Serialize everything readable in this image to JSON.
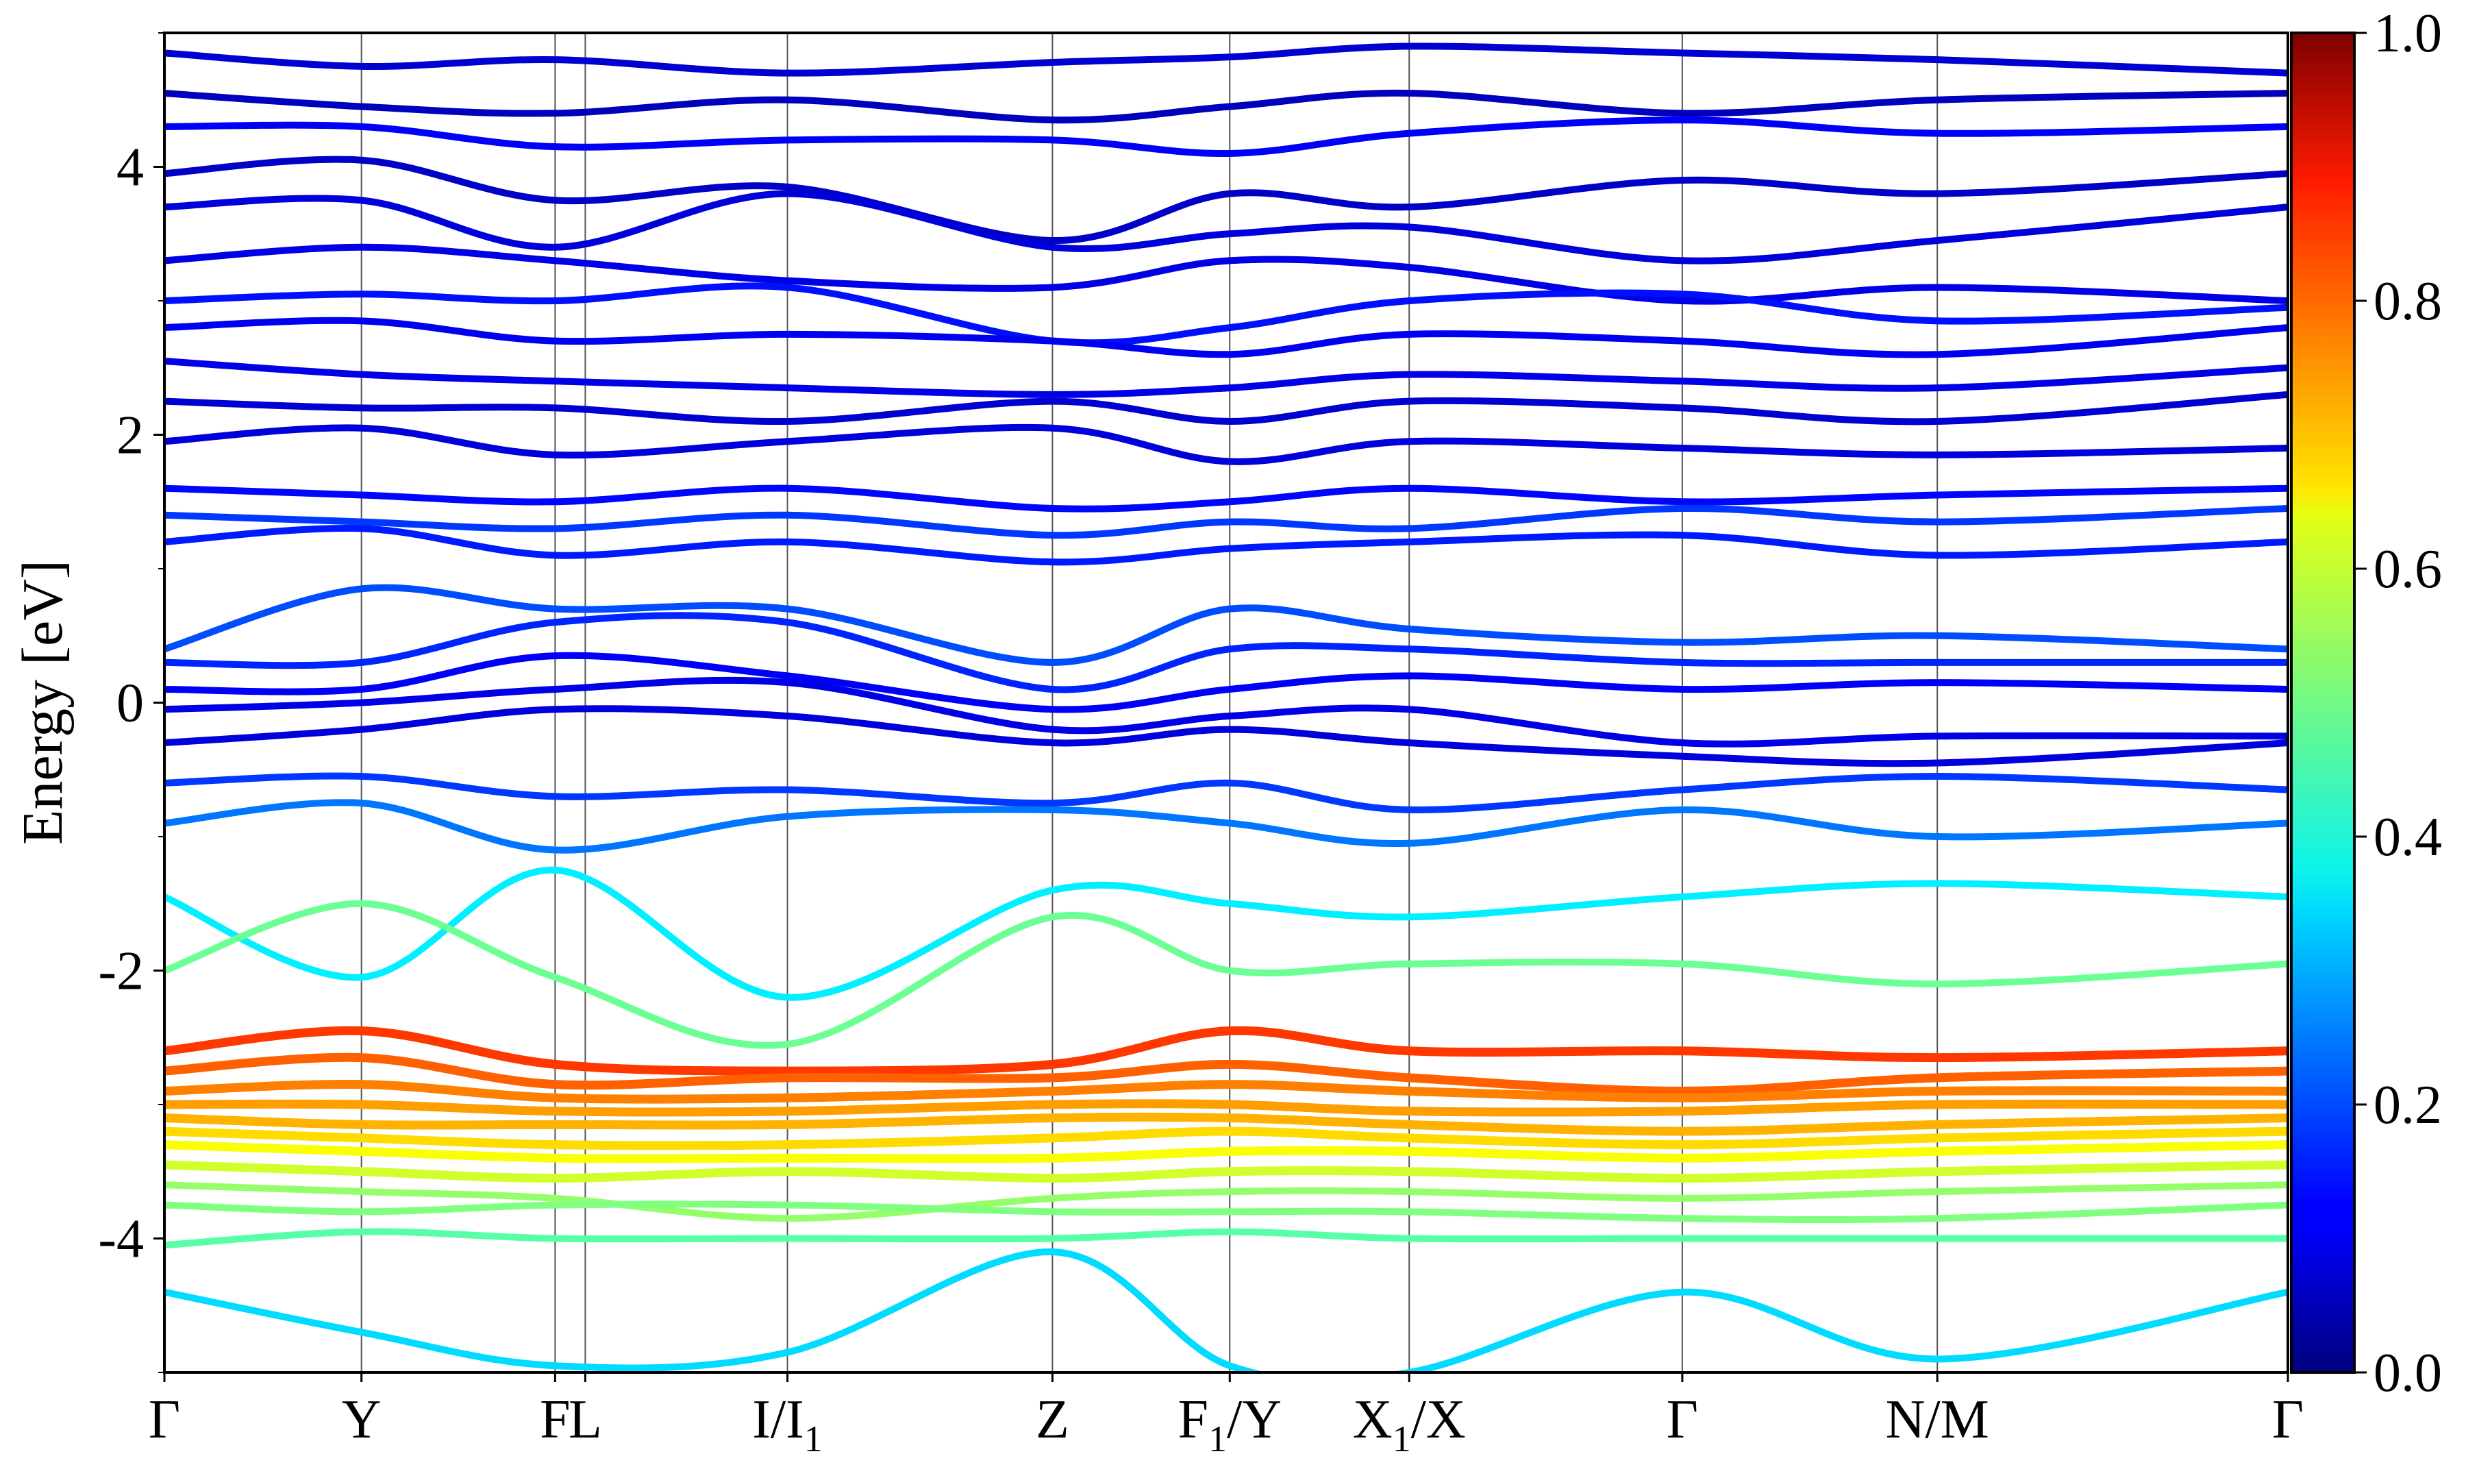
{
  "chart_data": {
    "type": "line",
    "title": "",
    "xlabel": "",
    "ylabel": "Energy [eV]",
    "ylim": [
      -5,
      5
    ],
    "y_ticks": [
      -4,
      -2,
      0,
      2,
      4
    ],
    "y_tick_labels": [
      "-4",
      "-2",
      "0",
      "2",
      "4"
    ],
    "grid": "vertical lines at high-symmetry points",
    "high_symmetry_points": [
      {
        "label": "Γ",
        "sub": "",
        "suffix": "",
        "k": 0.0
      },
      {
        "label": "Y",
        "sub": "",
        "suffix": "",
        "k": 0.0928
      },
      {
        "label": "F",
        "sub": "",
        "suffix": "",
        "k": 0.184
      },
      {
        "label": "L",
        "sub": "",
        "suffix": "",
        "k": 0.1982
      },
      {
        "label": "I/I",
        "sub": "1",
        "suffix": "",
        "k": 0.2934
      },
      {
        "label": "Z",
        "sub": "",
        "suffix": "",
        "k": 0.4182
      },
      {
        "label": "F",
        "sub": "1",
        "suffix": "/Y",
        "k": 0.5017
      },
      {
        "label": "X",
        "sub": "1",
        "suffix": "/X",
        "k": 0.5862
      },
      {
        "label": "Γ",
        "sub": "",
        "suffix": "",
        "k": 0.7148
      },
      {
        "label": "N/M",
        "sub": "",
        "suffix": "",
        "k": 0.8349
      },
      {
        "label": "Γ",
        "sub": "",
        "suffix": "",
        "k": 1.0
      }
    ],
    "colorbar": {
      "colormap": "jet",
      "range": [
        0.0,
        1.0
      ],
      "ticks": [
        "0.0",
        "0.2",
        "0.4",
        "0.6",
        "0.8",
        "1.0"
      ]
    },
    "series": [
      {
        "k": [
          0,
          0.0928,
          0.184,
          0.2934,
          0.4182,
          0.5017,
          0.5862,
          0.7148,
          0.8349,
          1.0
        ],
        "energy": [
          4.85,
          4.75,
          4.8,
          4.7,
          4.78,
          4.82,
          4.9,
          4.85,
          4.8,
          4.7
        ],
        "weight": 0.08
      },
      {
        "k": [
          0,
          0.0928,
          0.184,
          0.2934,
          0.4182,
          0.5017,
          0.5862,
          0.7148,
          0.8349,
          1.0
        ],
        "energy": [
          4.55,
          4.45,
          4.4,
          4.5,
          4.35,
          4.45,
          4.55,
          4.4,
          4.5,
          4.55
        ],
        "weight": 0.06
      },
      {
        "k": [
          0,
          0.0928,
          0.184,
          0.2934,
          0.4182,
          0.5017,
          0.5862,
          0.7148,
          0.8349,
          1.0
        ],
        "energy": [
          4.3,
          4.3,
          4.15,
          4.2,
          4.2,
          4.1,
          4.25,
          4.35,
          4.25,
          4.3
        ],
        "weight": 0.12
      },
      {
        "k": [
          0,
          0.0928,
          0.184,
          0.2934,
          0.4182,
          0.5017,
          0.5862,
          0.7148,
          0.8349,
          1.0
        ],
        "energy": [
          3.95,
          4.05,
          3.75,
          3.85,
          3.45,
          3.8,
          3.7,
          3.9,
          3.8,
          3.95
        ],
        "weight": 0.07
      },
      {
        "k": [
          0,
          0.0928,
          0.184,
          0.2934,
          0.4182,
          0.5017,
          0.5862,
          0.7148,
          0.8349,
          1.0
        ],
        "energy": [
          3.7,
          3.75,
          3.4,
          3.8,
          3.4,
          3.5,
          3.55,
          3.3,
          3.45,
          3.7
        ],
        "weight": 0.09
      },
      {
        "k": [
          0,
          0.0928,
          0.184,
          0.2934,
          0.4182,
          0.5017,
          0.5862,
          0.7148,
          0.8349,
          1.0
        ],
        "energy": [
          3.3,
          3.4,
          3.3,
          3.15,
          3.1,
          3.3,
          3.25,
          3.0,
          3.1,
          3.0
        ],
        "weight": 0.1
      },
      {
        "k": [
          0,
          0.0928,
          0.184,
          0.2934,
          0.4182,
          0.5017,
          0.5862,
          0.7148,
          0.8349,
          1.0
        ],
        "energy": [
          3.0,
          3.05,
          3.0,
          3.1,
          2.7,
          2.8,
          3.0,
          3.05,
          2.85,
          2.95
        ],
        "weight": 0.14
      },
      {
        "k": [
          0,
          0.0928,
          0.184,
          0.2934,
          0.4182,
          0.5017,
          0.5862,
          0.7148,
          0.8349,
          1.0
        ],
        "energy": [
          2.8,
          2.85,
          2.7,
          2.75,
          2.7,
          2.6,
          2.75,
          2.7,
          2.6,
          2.8
        ],
        "weight": 0.11
      },
      {
        "k": [
          0,
          0.0928,
          0.184,
          0.2934,
          0.4182,
          0.5017,
          0.5862,
          0.7148,
          0.8349,
          1.0
        ],
        "energy": [
          2.55,
          2.45,
          2.4,
          2.35,
          2.3,
          2.35,
          2.45,
          2.4,
          2.35,
          2.5
        ],
        "weight": 0.1
      },
      {
        "k": [
          0,
          0.0928,
          0.184,
          0.2934,
          0.4182,
          0.5017,
          0.5862,
          0.7148,
          0.8349,
          1.0
        ],
        "energy": [
          2.25,
          2.2,
          2.2,
          2.1,
          2.25,
          2.1,
          2.25,
          2.2,
          2.1,
          2.3
        ],
        "weight": 0.08
      },
      {
        "k": [
          0,
          0.0928,
          0.184,
          0.2934,
          0.4182,
          0.5017,
          0.5862,
          0.7148,
          0.8349,
          1.0
        ],
        "energy": [
          1.95,
          2.05,
          1.85,
          1.95,
          2.05,
          1.8,
          1.95,
          1.9,
          1.85,
          1.9
        ],
        "weight": 0.09
      },
      {
        "k": [
          0,
          0.0928,
          0.184,
          0.2934,
          0.4182,
          0.5017,
          0.5862,
          0.7148,
          0.8349,
          1.0
        ],
        "energy": [
          1.6,
          1.55,
          1.5,
          1.6,
          1.45,
          1.5,
          1.6,
          1.5,
          1.55,
          1.6
        ],
        "weight": 0.13
      },
      {
        "k": [
          0,
          0.0928,
          0.184,
          0.2934,
          0.4182,
          0.5017,
          0.5862,
          0.7148,
          0.8349,
          1.0
        ],
        "energy": [
          1.4,
          1.35,
          1.3,
          1.4,
          1.25,
          1.35,
          1.3,
          1.45,
          1.35,
          1.45
        ],
        "weight": 0.18
      },
      {
        "k": [
          0,
          0.0928,
          0.184,
          0.2934,
          0.4182,
          0.5017,
          0.5862,
          0.7148,
          0.8349,
          1.0
        ],
        "energy": [
          1.2,
          1.3,
          1.1,
          1.2,
          1.05,
          1.15,
          1.2,
          1.25,
          1.1,
          1.2
        ],
        "weight": 0.15
      },
      {
        "k": [
          0,
          0.0928,
          0.184,
          0.2934,
          0.4182,
          0.5017,
          0.5862,
          0.7148,
          0.8349,
          1.0
        ],
        "energy": [
          0.4,
          0.85,
          0.7,
          0.7,
          0.3,
          0.7,
          0.55,
          0.45,
          0.5,
          0.4
        ],
        "weight": 0.2
      },
      {
        "k": [
          0,
          0.0928,
          0.184,
          0.2934,
          0.4182,
          0.5017,
          0.5862,
          0.7148,
          0.8349,
          1.0
        ],
        "energy": [
          0.3,
          0.3,
          0.6,
          0.6,
          0.1,
          0.4,
          0.4,
          0.3,
          0.3,
          0.3
        ],
        "weight": 0.16
      },
      {
        "k": [
          0,
          0.0928,
          0.184,
          0.2934,
          0.4182,
          0.5017,
          0.5862,
          0.7148,
          0.8349,
          1.0
        ],
        "energy": [
          0.1,
          0.1,
          0.35,
          0.2,
          -0.05,
          0.1,
          0.2,
          0.1,
          0.15,
          0.1
        ],
        "weight": 0.12
      },
      {
        "k": [
          0,
          0.0928,
          0.184,
          0.2934,
          0.4182,
          0.5017,
          0.5862,
          0.7148,
          0.8349,
          1.0
        ],
        "energy": [
          -0.05,
          0.0,
          0.1,
          0.15,
          -0.2,
          -0.1,
          -0.05,
          -0.3,
          -0.25,
          -0.25
        ],
        "weight": 0.1
      },
      {
        "k": [
          0,
          0.0928,
          0.184,
          0.2934,
          0.4182,
          0.5017,
          0.5862,
          0.7148,
          0.8349,
          1.0
        ],
        "energy": [
          -0.3,
          -0.2,
          -0.05,
          -0.1,
          -0.3,
          -0.2,
          -0.3,
          -0.4,
          -0.45,
          -0.3
        ],
        "weight": 0.09
      },
      {
        "k": [
          0,
          0.0928,
          0.184,
          0.2934,
          0.4182,
          0.5017,
          0.5862,
          0.7148,
          0.8349,
          1.0
        ],
        "energy": [
          -0.6,
          -0.55,
          -0.7,
          -0.65,
          -0.75,
          -0.6,
          -0.8,
          -0.65,
          -0.55,
          -0.65
        ],
        "weight": 0.18
      },
      {
        "k": [
          0,
          0.0928,
          0.184,
          0.2934,
          0.4182,
          0.5017,
          0.5862,
          0.7148,
          0.8349,
          1.0
        ],
        "energy": [
          -0.9,
          -0.75,
          -1.1,
          -0.85,
          -0.8,
          -0.9,
          -1.05,
          -0.8,
          -1.0,
          -0.9
        ],
        "weight": 0.24
      },
      {
        "k": [
          0,
          0.0928,
          0.184,
          0.2934,
          0.4182,
          0.5017,
          0.5862,
          0.7148,
          0.8349,
          1.0
        ],
        "energy": [
          -1.45,
          -2.05,
          -1.25,
          -2.2,
          -1.4,
          -1.5,
          -1.6,
          -1.45,
          -1.35,
          -1.45
        ],
        "weight": 0.36
      },
      {
        "k": [
          0,
          0.0928,
          0.184,
          0.2934,
          0.4182,
          0.5017,
          0.5862,
          0.7148,
          0.8349,
          1.0
        ],
        "energy": [
          -2.0,
          -1.5,
          -2.05,
          -2.55,
          -1.6,
          -2.0,
          -1.95,
          -1.95,
          -2.1,
          -1.95
        ],
        "weight": 0.48
      },
      {
        "k": [
          0,
          0.0928,
          0.184,
          0.2934,
          0.4182,
          0.5017,
          0.5862,
          0.7148,
          0.8349,
          1.0
        ],
        "energy": [
          -2.6,
          -2.45,
          -2.7,
          -2.75,
          -2.7,
          -2.45,
          -2.6,
          -2.6,
          -2.65,
          -2.6
        ],
        "weight": 0.82
      },
      {
        "k": [
          0,
          0.0928,
          0.184,
          0.2934,
          0.4182,
          0.5017,
          0.5862,
          0.7148,
          0.8349,
          1.0
        ],
        "energy": [
          -2.75,
          -2.65,
          -2.85,
          -2.8,
          -2.8,
          -2.7,
          -2.8,
          -2.9,
          -2.8,
          -2.75
        ],
        "weight": 0.78
      },
      {
        "k": [
          0,
          0.0928,
          0.184,
          0.2934,
          0.4182,
          0.5017,
          0.5862,
          0.7148,
          0.8349,
          1.0
        ],
        "energy": [
          -2.9,
          -2.85,
          -2.95,
          -2.95,
          -2.9,
          -2.85,
          -2.9,
          -2.95,
          -2.9,
          -2.9
        ],
        "weight": 0.75
      },
      {
        "k": [
          0,
          0.0928,
          0.184,
          0.2934,
          0.4182,
          0.5017,
          0.5862,
          0.7148,
          0.8349,
          1.0
        ],
        "energy": [
          -3.0,
          -3.0,
          -3.05,
          -3.05,
          -3.0,
          -3.0,
          -3.05,
          -3.05,
          -3.0,
          -3.0
        ],
        "weight": 0.72
      },
      {
        "k": [
          0,
          0.0928,
          0.184,
          0.2934,
          0.4182,
          0.5017,
          0.5862,
          0.7148,
          0.8349,
          1.0
        ],
        "energy": [
          -3.1,
          -3.15,
          -3.15,
          -3.15,
          -3.1,
          -3.1,
          -3.15,
          -3.2,
          -3.15,
          -3.1
        ],
        "weight": 0.7
      },
      {
        "k": [
          0,
          0.0928,
          0.184,
          0.2934,
          0.4182,
          0.5017,
          0.5862,
          0.7148,
          0.8349,
          1.0
        ],
        "energy": [
          -3.2,
          -3.25,
          -3.3,
          -3.3,
          -3.25,
          -3.2,
          -3.25,
          -3.3,
          -3.25,
          -3.2
        ],
        "weight": 0.66
      },
      {
        "k": [
          0,
          0.0928,
          0.184,
          0.2934,
          0.4182,
          0.5017,
          0.5862,
          0.7148,
          0.8349,
          1.0
        ],
        "energy": [
          -3.3,
          -3.35,
          -3.4,
          -3.4,
          -3.4,
          -3.35,
          -3.35,
          -3.4,
          -3.35,
          -3.3
        ],
        "weight": 0.62
      },
      {
        "k": [
          0,
          0.0928,
          0.184,
          0.2934,
          0.4182,
          0.5017,
          0.5862,
          0.7148,
          0.8349,
          1.0
        ],
        "energy": [
          -3.45,
          -3.5,
          -3.55,
          -3.5,
          -3.55,
          -3.5,
          -3.5,
          -3.55,
          -3.5,
          -3.45
        ],
        "weight": 0.58
      },
      {
        "k": [
          0,
          0.0928,
          0.184,
          0.2934,
          0.4182,
          0.5017,
          0.5862,
          0.7148,
          0.8349,
          1.0
        ],
        "energy": [
          -3.6,
          -3.65,
          -3.7,
          -3.85,
          -3.7,
          -3.65,
          -3.65,
          -3.7,
          -3.65,
          -3.6
        ],
        "weight": 0.52
      },
      {
        "k": [
          0,
          0.0928,
          0.184,
          0.2934,
          0.4182,
          0.5017,
          0.5862,
          0.7148,
          0.8349,
          1.0
        ],
        "energy": [
          -3.75,
          -3.8,
          -3.75,
          -3.75,
          -3.8,
          -3.8,
          -3.8,
          -3.85,
          -3.85,
          -3.75
        ],
        "weight": 0.5
      },
      {
        "k": [
          0,
          0.0928,
          0.184,
          0.2934,
          0.4182,
          0.5017,
          0.5862,
          0.7148,
          0.8349,
          1.0
        ],
        "energy": [
          -4.05,
          -3.95,
          -4.0,
          -4.0,
          -4.0,
          -3.95,
          -4.0,
          -4.0,
          -4.0,
          -4.0
        ],
        "weight": 0.46
      },
      {
        "k": [
          0,
          0.0928,
          0.184,
          0.2934,
          0.4182,
          0.5017,
          0.5862,
          0.7148,
          0.8349,
          1.0
        ],
        "energy": [
          -4.4,
          -4.7,
          -4.95,
          -4.85,
          -4.1,
          -4.95,
          -5.0,
          -4.4,
          -4.9,
          -4.4
        ],
        "weight": 0.34
      }
    ]
  }
}
